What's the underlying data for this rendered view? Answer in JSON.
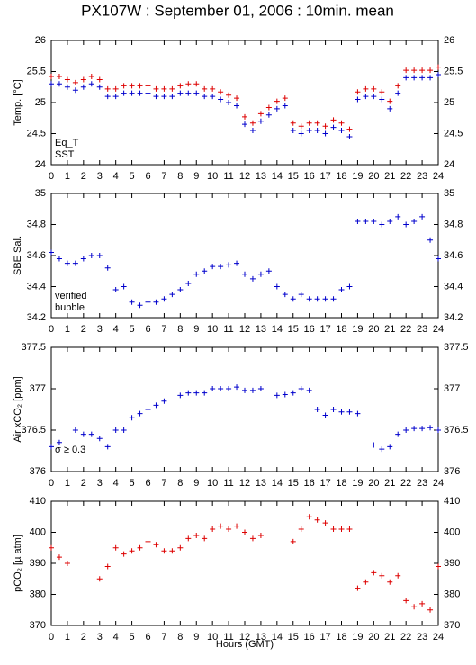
{
  "title": "PX107W : September 01, 2006 : 10min. mean",
  "x_label": "Hours (GMT)",
  "chart_data": [
    {
      "type": "scatter",
      "y_label": "Temp. [°C]",
      "x": [
        0,
        0.5,
        1,
        1.5,
        2,
        2.5,
        3,
        3.5,
        4,
        4.5,
        5,
        5.5,
        6,
        6.5,
        7,
        7.5,
        8,
        8.5,
        9,
        9.5,
        10,
        10.5,
        11,
        11.5,
        12,
        12.5,
        13,
        13.5,
        14,
        14.5,
        15,
        15.5,
        16,
        16.5,
        17,
        17.5,
        18,
        18.5,
        19,
        19.5,
        20,
        20.5,
        21,
        21.5,
        22,
        22.5,
        23,
        23.5,
        24
      ],
      "series": [
        {
          "name": "Eq_T",
          "color": "#dd0000",
          "values": [
            25.42,
            25.42,
            25.37,
            25.32,
            25.37,
            25.42,
            25.37,
            25.22,
            25.22,
            25.27,
            25.27,
            25.27,
            25.27,
            25.22,
            25.22,
            25.22,
            25.27,
            25.3,
            25.3,
            25.22,
            25.22,
            25.17,
            25.12,
            25.07,
            24.77,
            24.67,
            24.82,
            24.92,
            25.02,
            25.07,
            24.67,
            24.62,
            24.67,
            24.67,
            24.62,
            24.72,
            24.67,
            24.57,
            25.17,
            25.22,
            25.22,
            25.17,
            25.02,
            25.27,
            25.52,
            25.52,
            25.52,
            25.52,
            25.57
          ]
        },
        {
          "name": "SST",
          "color": "#0000cc",
          "values": [
            25.3,
            25.3,
            25.25,
            25.2,
            25.25,
            25.3,
            25.25,
            25.1,
            25.1,
            25.15,
            25.15,
            25.15,
            25.15,
            25.1,
            25.1,
            25.1,
            25.15,
            25.15,
            25.15,
            25.1,
            25.1,
            25.05,
            25.0,
            24.95,
            24.65,
            24.55,
            24.7,
            24.8,
            24.9,
            24.95,
            24.55,
            24.5,
            24.55,
            24.55,
            24.5,
            24.6,
            24.55,
            24.45,
            25.05,
            25.1,
            25.1,
            25.05,
            24.9,
            25.15,
            25.4,
            25.4,
            25.4,
            25.4,
            25.45
          ]
        }
      ],
      "xlim": [
        0,
        24
      ],
      "xticks": [
        0,
        1,
        2,
        3,
        4,
        5,
        6,
        7,
        8,
        9,
        10,
        11,
        12,
        13,
        14,
        15,
        16,
        17,
        18,
        19,
        20,
        21,
        22,
        23,
        24
      ],
      "ylim": [
        24,
        26
      ],
      "yticks": [
        24,
        24.5,
        25,
        25.5,
        26
      ]
    },
    {
      "type": "scatter",
      "y_label": "SBE Sal.",
      "x": [
        0,
        0.5,
        1,
        1.5,
        2,
        2.5,
        3,
        3.5,
        4,
        4.5,
        5,
        5.5,
        6,
        6.5,
        7,
        7.5,
        8,
        8.5,
        9,
        9.5,
        10,
        10.5,
        11,
        11.5,
        12,
        12.5,
        13,
        13.5,
        14,
        14.5,
        15,
        15.5,
        16,
        16.5,
        17,
        17.5,
        18,
        18.5,
        19,
        19.5,
        20,
        20.5,
        21,
        21.5,
        22,
        22.5,
        23,
        23.5,
        24
      ],
      "series": [
        {
          "name": "verified",
          "color": "#0000cc",
          "values": [
            34.62,
            34.58,
            34.55,
            34.55,
            34.58,
            34.6,
            34.6,
            34.52,
            34.38,
            34.4,
            34.3,
            34.28,
            34.3,
            34.3,
            34.32,
            34.35,
            34.38,
            34.42,
            34.48,
            34.5,
            34.53,
            34.53,
            34.54,
            34.55,
            34.48,
            34.45,
            34.48,
            34.5,
            34.4,
            34.35,
            34.32,
            34.35,
            34.32,
            34.32,
            34.32,
            34.32,
            34.38,
            34.4,
            34.82,
            34.82,
            34.82,
            34.8,
            34.82,
            34.85,
            34.8,
            34.82,
            34.85,
            34.7,
            34.58
          ]
        }
      ],
      "annotations": [
        {
          "text": "bubble",
          "color": "#cc00cc"
        }
      ],
      "xlim": [
        0,
        24
      ],
      "xticks": [
        0,
        1,
        2,
        3,
        4,
        5,
        6,
        7,
        8,
        9,
        10,
        11,
        12,
        13,
        14,
        15,
        16,
        17,
        18,
        19,
        20,
        21,
        22,
        23,
        24
      ],
      "ylim": [
        34.2,
        35
      ],
      "yticks": [
        34.2,
        34.4,
        34.6,
        34.8,
        35
      ]
    },
    {
      "type": "scatter",
      "y_label": "Air xCO₂ [ppm]",
      "x": [
        0,
        0.5,
        1,
        1.5,
        2,
        2.5,
        3,
        3.5,
        4,
        4.5,
        5,
        5.5,
        6,
        6.5,
        7,
        7.5,
        8,
        8.5,
        9,
        9.5,
        10,
        10.5,
        11,
        11.5,
        12,
        12.5,
        13,
        13.5,
        14,
        14.5,
        15,
        15.5,
        16,
        16.5,
        17,
        17.5,
        18,
        18.5,
        19,
        19.5,
        20,
        20.5,
        21,
        21.5,
        22,
        22.5,
        23,
        23.5,
        24
      ],
      "series": [
        {
          "name": null,
          "color": "#0000cc",
          "values": [
            376.3,
            376.35,
            null,
            376.5,
            376.45,
            376.45,
            376.4,
            376.3,
            376.5,
            376.5,
            376.65,
            376.7,
            376.75,
            376.8,
            376.85,
            null,
            376.92,
            376.95,
            376.95,
            376.95,
            377.0,
            377.0,
            377.0,
            377.02,
            376.98,
            376.98,
            377.0,
            null,
            376.92,
            376.93,
            376.95,
            377.0,
            376.98,
            376.75,
            376.68,
            376.75,
            376.72,
            376.72,
            376.7,
            null,
            376.32,
            376.27,
            376.3,
            376.45,
            376.5,
            376.52,
            376.52,
            376.53,
            376.5
          ]
        }
      ],
      "annotations": [
        {
          "text": "σ ≥ 0.3",
          "color": "#cc00cc"
        }
      ],
      "xlim": [
        0,
        24
      ],
      "xticks": [
        0,
        1,
        2,
        3,
        4,
        5,
        6,
        7,
        8,
        9,
        10,
        11,
        12,
        13,
        14,
        15,
        16,
        17,
        18,
        19,
        20,
        21,
        22,
        23,
        24
      ],
      "ylim": [
        376,
        377.5
      ],
      "yticks": [
        376,
        376.5,
        377,
        377.5
      ]
    },
    {
      "type": "scatter",
      "y_label": "pCO₂ [µ atm]",
      "x": [
        0,
        0.5,
        1,
        1.5,
        2,
        2.5,
        3,
        3.5,
        4,
        4.5,
        5,
        5.5,
        6,
        6.5,
        7,
        7.5,
        8,
        8.5,
        9,
        9.5,
        10,
        10.5,
        11,
        11.5,
        12,
        12.5,
        13,
        13.5,
        14,
        14.5,
        15,
        15.5,
        16,
        16.5,
        17,
        17.5,
        18,
        18.5,
        19,
        19.5,
        20,
        20.5,
        21,
        21.5,
        22,
        22.5,
        23,
        23.5,
        24
      ],
      "series": [
        {
          "name": null,
          "color": "#dd0000",
          "values": [
            395,
            392,
            390,
            null,
            null,
            null,
            385,
            389,
            395,
            393,
            394,
            395,
            397,
            396,
            394,
            394,
            395,
            398,
            399,
            398,
            401,
            402,
            401,
            402,
            400,
            398,
            399,
            null,
            null,
            null,
            397,
            401,
            405,
            404,
            403,
            401,
            401,
            401,
            382,
            384,
            387,
            386,
            384,
            386,
            378,
            376,
            377,
            375,
            389
          ]
        }
      ],
      "xlim": [
        0,
        24
      ],
      "xticks": [
        0,
        1,
        2,
        3,
        4,
        5,
        6,
        7,
        8,
        9,
        10,
        11,
        12,
        13,
        14,
        15,
        16,
        17,
        18,
        19,
        20,
        21,
        22,
        23,
        24
      ],
      "ylim": [
        370,
        410
      ],
      "yticks": [
        370,
        380,
        390,
        400,
        410
      ]
    }
  ]
}
